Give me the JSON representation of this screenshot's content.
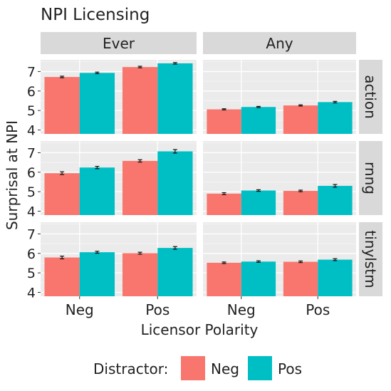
{
  "chart_data": {
    "type": "bar",
    "title": "NPI Licensing",
    "xlabel": "Licensor Polarity",
    "ylabel": "Surprisal at NPI",
    "categories": [
      "Neg",
      "Pos"
    ],
    "column_facets": [
      "Ever",
      "Any"
    ],
    "row_facets": [
      "action",
      "rnng",
      "tinylstm"
    ],
    "ylim": [
      3.8,
      7.6
    ],
    "yticks": [
      4,
      5,
      6,
      7
    ],
    "legend": {
      "title": "Distractor:",
      "position": "bottom",
      "entries": [
        {
          "name": "Neg",
          "color": "#F8766D"
        },
        {
          "name": "Pos",
          "color": "#00BFC4"
        }
      ]
    },
    "grid": true,
    "panels": [
      {
        "row": "action",
        "col": "Ever",
        "series": [
          {
            "name": "Neg",
            "values": [
              6.72,
              7.23
            ],
            "errors": [
              0.04,
              0.04
            ]
          },
          {
            "name": "Pos",
            "values": [
              6.93,
              7.42
            ],
            "errors": [
              0.04,
              0.04
            ]
          }
        ]
      },
      {
        "row": "action",
        "col": "Any",
        "series": [
          {
            "name": "Neg",
            "values": [
              5.06,
              5.26
            ],
            "errors": [
              0.03,
              0.03
            ]
          },
          {
            "name": "Pos",
            "values": [
              5.18,
              5.43
            ],
            "errors": [
              0.03,
              0.04
            ]
          }
        ]
      },
      {
        "row": "rnng",
        "col": "Ever",
        "series": [
          {
            "name": "Neg",
            "values": [
              5.95,
              6.58
            ],
            "errors": [
              0.07,
              0.06
            ]
          },
          {
            "name": "Pos",
            "values": [
              6.24,
              7.07
            ],
            "errors": [
              0.06,
              0.09
            ]
          }
        ]
      },
      {
        "row": "rnng",
        "col": "Any",
        "series": [
          {
            "name": "Neg",
            "values": [
              4.9,
              5.04
            ],
            "errors": [
              0.05,
              0.04
            ]
          },
          {
            "name": "Pos",
            "values": [
              5.06,
              5.3
            ],
            "errors": [
              0.04,
              0.07
            ]
          }
        ]
      },
      {
        "row": "tinylstm",
        "col": "Ever",
        "series": [
          {
            "name": "Neg",
            "values": [
              5.79,
              6.01
            ],
            "errors": [
              0.07,
              0.05
            ]
          },
          {
            "name": "Pos",
            "values": [
              6.06,
              6.28
            ],
            "errors": [
              0.05,
              0.07
            ]
          }
        ]
      },
      {
        "row": "tinylstm",
        "col": "Any",
        "series": [
          {
            "name": "Neg",
            "values": [
              5.52,
              5.57
            ],
            "errors": [
              0.04,
              0.04
            ]
          },
          {
            "name": "Pos",
            "values": [
              5.58,
              5.68
            ],
            "errors": [
              0.04,
              0.05
            ]
          }
        ]
      }
    ]
  }
}
